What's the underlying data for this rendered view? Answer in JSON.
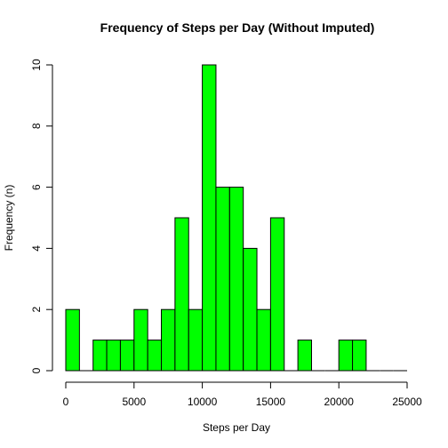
{
  "chart_data": {
    "type": "bar",
    "subtype": "histogram",
    "title": "Frequency of Steps per Day (Without Imputed)",
    "xlabel": "Steps per Day",
    "ylabel": "Frequency (n)",
    "bin_width": 1000,
    "bins": [
      {
        "start": 0,
        "end": 1000,
        "count": 2
      },
      {
        "start": 1000,
        "end": 2000,
        "count": 0
      },
      {
        "start": 2000,
        "end": 3000,
        "count": 1
      },
      {
        "start": 3000,
        "end": 4000,
        "count": 1
      },
      {
        "start": 4000,
        "end": 5000,
        "count": 1
      },
      {
        "start": 5000,
        "end": 6000,
        "count": 2
      },
      {
        "start": 6000,
        "end": 7000,
        "count": 1
      },
      {
        "start": 7000,
        "end": 8000,
        "count": 2
      },
      {
        "start": 8000,
        "end": 9000,
        "count": 5
      },
      {
        "start": 9000,
        "end": 10000,
        "count": 2
      },
      {
        "start": 10000,
        "end": 11000,
        "count": 10
      },
      {
        "start": 11000,
        "end": 12000,
        "count": 6
      },
      {
        "start": 12000,
        "end": 13000,
        "count": 6
      },
      {
        "start": 13000,
        "end": 14000,
        "count": 4
      },
      {
        "start": 14000,
        "end": 15000,
        "count": 2
      },
      {
        "start": 15000,
        "end": 16000,
        "count": 5
      },
      {
        "start": 16000,
        "end": 17000,
        "count": 0
      },
      {
        "start": 17000,
        "end": 18000,
        "count": 1
      },
      {
        "start": 18000,
        "end": 19000,
        "count": 0
      },
      {
        "start": 19000,
        "end": 20000,
        "count": 0
      },
      {
        "start": 20000,
        "end": 21000,
        "count": 1
      },
      {
        "start": 21000,
        "end": 22000,
        "count": 1
      },
      {
        "start": 22000,
        "end": 23000,
        "count": 0
      },
      {
        "start": 23000,
        "end": 24000,
        "count": 0
      },
      {
        "start": 24000,
        "end": 25000,
        "count": 0
      }
    ],
    "xlim": [
      0,
      25000
    ],
    "ylim": [
      0,
      10
    ],
    "x_ticks": [
      "0",
      "5000",
      "10000",
      "15000",
      "20000",
      "25000"
    ],
    "y_ticks": [
      "0",
      "2",
      "4",
      "6",
      "8",
      "10"
    ],
    "grid": false,
    "bar_color": "#00FF00",
    "bar_border_color": "#000000"
  }
}
